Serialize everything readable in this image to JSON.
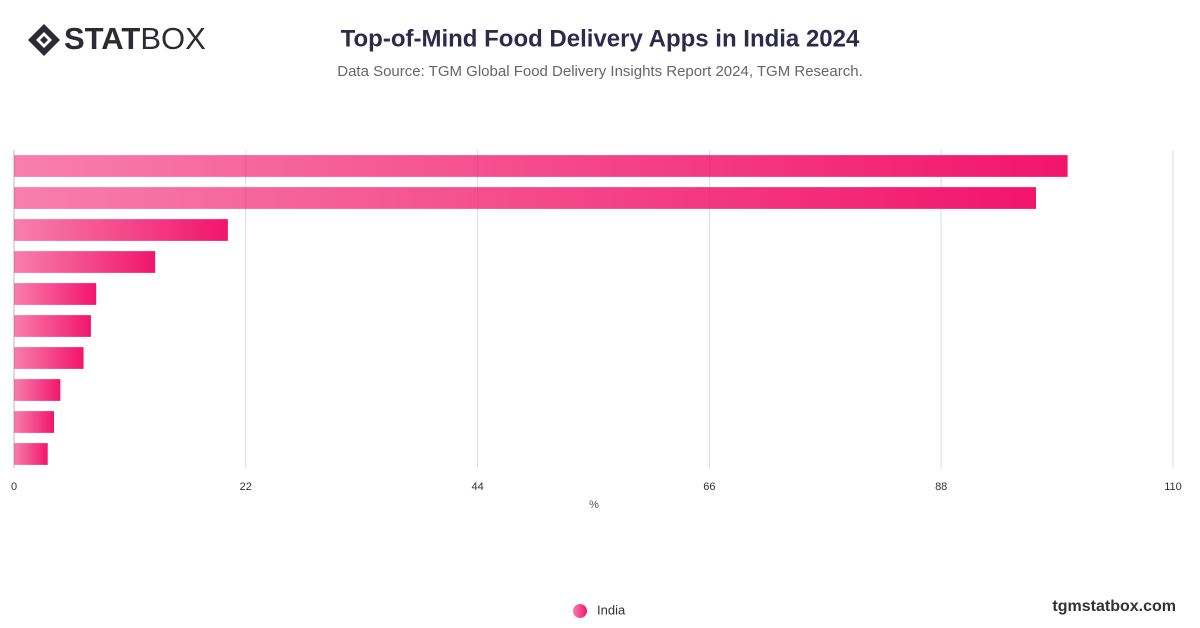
{
  "chart_data": {
    "type": "bar",
    "orientation": "horizontal",
    "logo": {
      "bold": "STAT",
      "light": "BOX"
    },
    "title": "Top-of-Mind Food Delivery Apps in India 2024",
    "subtitle": "Data Source: TGM Global Food Delivery Insights Report 2024, TGM Research.",
    "categories": [
      null,
      null,
      null,
      null,
      null,
      null,
      null,
      null,
      null,
      null
    ],
    "series": [
      {
        "name": "India",
        "color": "#f2156b",
        "values": [
          100,
          97,
          20.3,
          13.4,
          7.8,
          7.3,
          6.6,
          4.4,
          3.8,
          3.2
        ]
      }
    ],
    "xlim": [
      0,
      110
    ],
    "xticks": [
      0,
      22,
      44,
      66,
      88,
      110
    ],
    "xlabel": "%",
    "grid": true,
    "legend": "bottom",
    "footer": "tgmstatbox.com"
  }
}
